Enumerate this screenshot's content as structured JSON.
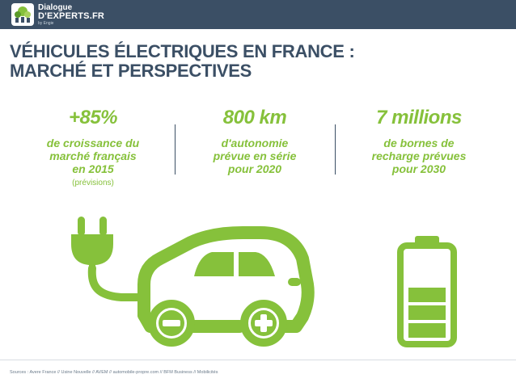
{
  "logo": {
    "line1": "Dialogue",
    "line2": "D'EXPERTS.FR",
    "line3": "by Engie"
  },
  "title": {
    "line1": "VÉHICULES ÉLECTRIQUES EN FRANCE :",
    "line2": "MARCHÉ ET PERSPECTIVES"
  },
  "stats": [
    {
      "value": "+85%",
      "desc": [
        "de croissance du",
        "marché français",
        "en 2015"
      ],
      "note": "(prévisions)"
    },
    {
      "value": "800 km",
      "desc": [
        "d'autonomie",
        "prévue en série",
        "pour 2020"
      ]
    },
    {
      "value": "7 millions",
      "desc": [
        "de bornes de",
        "recharge prévues",
        "pour 2030"
      ]
    }
  ],
  "sources": "Sources : Avere France // Usine Nouvelle // AVEM // automobile-propre.com // BFM Business // Mobilicités",
  "battery_level": 0.6,
  "colors": {
    "accent": "#86c13b",
    "navy": "#3b4f65",
    "header": "#3b4f65"
  },
  "icons": [
    "plug-icon",
    "electric-car-icon",
    "minus-icon",
    "plus-icon",
    "battery-icon"
  ]
}
